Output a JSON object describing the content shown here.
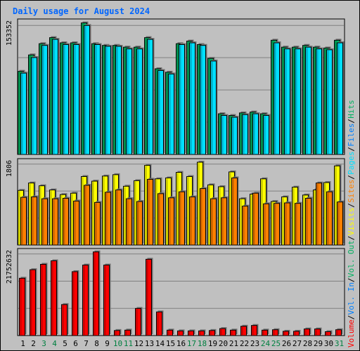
{
  "chart_data": [
    {
      "type": "bar",
      "panel": "hits",
      "title": "Daily usage for August 2024",
      "ytick_label": "153352",
      "ylim": [
        0,
        153352
      ],
      "categories": [
        "1",
        "2",
        "3",
        "4",
        "5",
        "6",
        "7",
        "8",
        "9",
        "10",
        "11",
        "12",
        "13",
        "14",
        "15",
        "16",
        "17",
        "18",
        "19",
        "20",
        "21",
        "22",
        "23",
        "24",
        "25",
        "26",
        "27",
        "28",
        "29",
        "30",
        "31"
      ],
      "weekend_days": [
        "3",
        "4",
        "10",
        "11",
        "17",
        "18",
        "24",
        "25",
        "31"
      ],
      "series": [
        {
          "name": "Hits",
          "color": "#00b060",
          "values": [
            96000,
            115000,
            128000,
            135000,
            129000,
            129000,
            152000,
            128000,
            126000,
            126000,
            124000,
            124000,
            135000,
            99000,
            95000,
            128000,
            131000,
            127000,
            111000,
            47000,
            45000,
            48000,
            49000,
            47000,
            132000,
            124000,
            124000,
            126000,
            124000,
            123000,
            132000
          ]
        },
        {
          "name": "Files",
          "color": "#0080ff",
          "values": [
            0,
            0,
            0,
            0,
            0,
            0,
            0,
            0,
            0,
            0,
            0,
            0,
            0,
            0,
            0,
            0,
            0,
            0,
            0,
            0,
            0,
            0,
            0,
            0,
            0,
            0,
            0,
            0,
            0,
            0,
            0
          ]
        },
        {
          "name": "Pages",
          "color": "#00e0ff",
          "values": [
            94000,
            112000,
            126000,
            133000,
            127000,
            127000,
            149000,
            127000,
            125000,
            125000,
            122000,
            122000,
            133000,
            97000,
            93000,
            127000,
            129000,
            126000,
            108000,
            45000,
            43000,
            46000,
            47000,
            45000,
            129000,
            122000,
            122000,
            124000,
            122000,
            121000,
            129000
          ]
        }
      ],
      "legend_order": [
        "Hits",
        "Files",
        "Pages"
      ]
    },
    {
      "type": "bar",
      "panel": "visits",
      "ytick_label": "1806",
      "ylim": [
        0,
        1806
      ],
      "categories": [
        "1",
        "2",
        "3",
        "4",
        "5",
        "6",
        "7",
        "8",
        "9",
        "10",
        "11",
        "12",
        "13",
        "14",
        "15",
        "16",
        "17",
        "18",
        "19",
        "20",
        "21",
        "22",
        "23",
        "24",
        "25",
        "26",
        "27",
        "28",
        "29",
        "30",
        "31"
      ],
      "series": [
        {
          "name": "Visits",
          "color": "#ffff00",
          "values": [
            1180,
            1340,
            1280,
            1190,
            1090,
            1120,
            1480,
            1380,
            1490,
            1520,
            1270,
            1390,
            1720,
            1430,
            1450,
            1570,
            1480,
            1790,
            1300,
            1260,
            1580,
            1000,
            1100,
            1430,
            940,
            1040,
            1250,
            1080,
            1190,
            1350,
            1710
          ]
        },
        {
          "name": "Sites",
          "color": "#ff8000",
          "values": [
            1030,
            1040,
            1000,
            1000,
            1010,
            950,
            1290,
            920,
            1140,
            1190,
            1000,
            940,
            1420,
            1110,
            1020,
            1150,
            1040,
            1220,
            1000,
            1020,
            1450,
            840,
            1120,
            890,
            900,
            910,
            900,
            1010,
            1340,
            1150,
            930
          ]
        }
      ],
      "legend_order": [
        "Visits",
        "Sites"
      ]
    },
    {
      "type": "bar",
      "panel": "volume",
      "ytick_label": "21752632",
      "ylim": [
        0,
        21752632
      ],
      "categories": [
        "1",
        "2",
        "3",
        "4",
        "5",
        "6",
        "7",
        "8",
        "9",
        "10",
        "11",
        "12",
        "13",
        "14",
        "15",
        "16",
        "17",
        "18",
        "19",
        "20",
        "21",
        "22",
        "23",
        "24",
        "25",
        "26",
        "27",
        "28",
        "29",
        "30",
        "31"
      ],
      "series": [
        {
          "name": "Volume",
          "color": "#ff0000",
          "values": [
            14800000,
            17000000,
            18400000,
            19300000,
            8000000,
            16500000,
            18200000,
            21600000,
            18200000,
            1300000,
            1400000,
            7000000,
            19700000,
            6100000,
            1400000,
            1200000,
            1200000,
            1200000,
            1300000,
            1800000,
            1400000,
            2400000,
            2600000,
            1400000,
            1500000,
            1100000,
            1100000,
            1700000,
            1700000,
            1000000,
            1500000
          ]
        },
        {
          "name": "Vol. In",
          "color": "#0080ff",
          "values": [
            0,
            0,
            0,
            0,
            0,
            0,
            0,
            0,
            0,
            0,
            0,
            0,
            0,
            0,
            0,
            0,
            0,
            0,
            0,
            0,
            0,
            0,
            0,
            0,
            0,
            0,
            0,
            0,
            0,
            0,
            0
          ]
        },
        {
          "name": "Vol. Out",
          "color": "#00b060",
          "values": [
            0,
            0,
            0,
            0,
            0,
            0,
            0,
            0,
            0,
            0,
            0,
            0,
            0,
            0,
            0,
            0,
            0,
            0,
            0,
            0,
            0,
            0,
            0,
            0,
            0,
            0,
            0,
            0,
            0,
            0,
            0
          ]
        }
      ],
      "legend_order": [
        "Volume",
        "Vol. In",
        "Vol. Out"
      ]
    }
  ]
}
